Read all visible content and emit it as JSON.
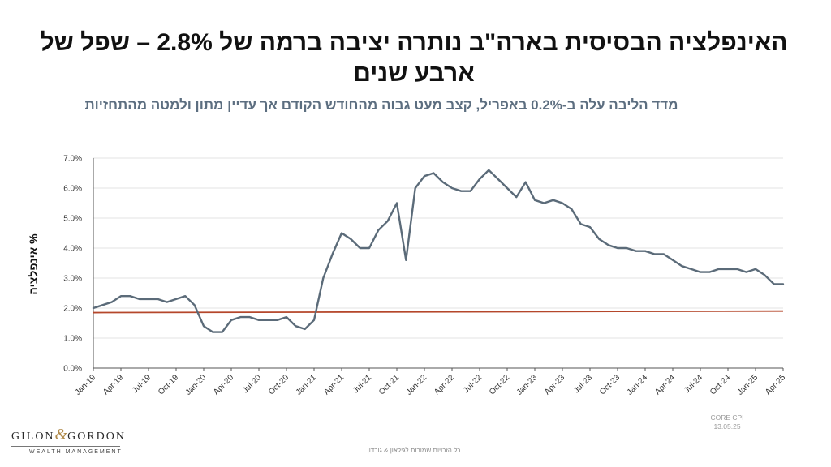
{
  "header": {
    "title": "האינפלציה הבסיסית בארה\"ב נותרה יציבה ברמה של 2.8% – שפל של ארבע שנים",
    "subtitle": "מדד הליבה עלה ב-0.2% באפריל, קצב מעט גבוה מהחודש הקודם אך עדיין מתון ולמטה מהתחזיות"
  },
  "footer": {
    "source_line1": "CORE CPI",
    "source_line2": "13.05.25",
    "copyright": "כל הזכויות שמורות לגילאון & גורדון"
  },
  "brand": {
    "name_left": "GILON",
    "ampersand": "&",
    "name_right": "GORDON",
    "tagline": "WEALTH MANAGEMENT"
  },
  "colors": {
    "line": "#5b6b79",
    "target_line": "#b5472b",
    "grid": "#e3e3e3",
    "axis": "#555555",
    "title": "#111111",
    "subtitle": "#5c6e80"
  },
  "chart_data": {
    "type": "line",
    "title": "האינפלציה הבסיסית בארה\"ב נותרה יציבה ברמה של 2.8% – שפל של ארבע שנים",
    "subtitle": "מדד הליבה עלה ב-0.2% באפריל, קצב מעט גבוה מהחודש הקודם אך עדיין מתון ולמטה מהתחזיות",
    "xlabel": "",
    "ylabel": "% אינפלציה",
    "ylim": [
      0,
      7
    ],
    "yticks": [
      "0.0%",
      "1.0%",
      "2.0%",
      "3.0%",
      "4.0%",
      "5.0%",
      "6.0%",
      "7.0%"
    ],
    "xticks": [
      "Jan-19",
      "Apr-19",
      "Jul-19",
      "Oct-19",
      "Jan-20",
      "Apr-20",
      "Jul-20",
      "Oct-20",
      "Jan-21",
      "Apr-21",
      "Jul-21",
      "Oct-21",
      "Jan-22",
      "Apr-22",
      "Jul-22",
      "Oct-22",
      "Jan-23",
      "Apr-23",
      "Jul-23",
      "Oct-23",
      "Jan-24",
      "Apr-24",
      "Jul-24",
      "Oct-24",
      "Jan-25",
      "Apr-25"
    ],
    "grid": "horizontal",
    "legend": "none",
    "x_start": "2019-01",
    "x_end": "2025-04",
    "series": [
      {
        "values": [
          2.0,
          2.1,
          2.2,
          2.4,
          2.4,
          2.3,
          2.3,
          2.3,
          2.2,
          2.3,
          2.4,
          2.1,
          1.4,
          1.2,
          1.2,
          1.6,
          1.7,
          1.7,
          1.6,
          1.6,
          1.6,
          1.7,
          1.4,
          1.3,
          1.6,
          3.0,
          3.8,
          4.5,
          4.3,
          4.0,
          4.0,
          4.6,
          4.9,
          5.5,
          3.6,
          6.0,
          6.4,
          6.5,
          6.2,
          6.0,
          5.9,
          5.9,
          6.3,
          6.6,
          6.3,
          6.0,
          5.7,
          6.2,
          5.6,
          5.5,
          5.6,
          5.5,
          5.3,
          4.8,
          4.7,
          4.3,
          4.1,
          4.0,
          4.0,
          3.9,
          3.9,
          3.8,
          3.8,
          3.6,
          3.4,
          3.3,
          3.2,
          3.2,
          3.3,
          3.3,
          3.3,
          3.2,
          3.3,
          3.1,
          2.8,
          2.8
        ]
      },
      {
        "values_start_end": [
          1.85,
          1.9
        ]
      }
    ]
  }
}
